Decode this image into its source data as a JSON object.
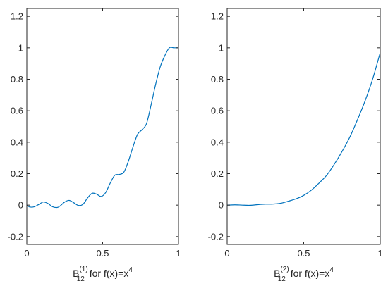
{
  "accent_color": "#0072bd",
  "chart_data": [
    {
      "type": "line",
      "title": "",
      "xlabel": {
        "base": "B",
        "sup": "(1)",
        "sub": "12",
        "rest": " for f(x)=x",
        "power": "4"
      },
      "ylabel": "",
      "xlim": [
        0,
        1
      ],
      "ylim": [
        -0.25,
        1.25
      ],
      "xticks": [
        0,
        0.5,
        1
      ],
      "xtick_labels": [
        "0",
        "0.5",
        "1"
      ],
      "yticks": [
        -0.2,
        0,
        0.2,
        0.4,
        0.6,
        0.8,
        1,
        1.2
      ],
      "ytick_labels": [
        "-0.2",
        "0",
        "0.2",
        "0.4",
        "0.6",
        "0.8",
        "1",
        "1.2"
      ],
      "grid": false,
      "series": [
        {
          "color": "#0072bd",
          "x": [
            0,
            0.02,
            0.05,
            0.08,
            0.11,
            0.14,
            0.17,
            0.2,
            0.22,
            0.25,
            0.28,
            0.31,
            0.34,
            0.37,
            0.4,
            0.43,
            0.46,
            0.49,
            0.52,
            0.55,
            0.58,
            0.61,
            0.64,
            0.67,
            0.7,
            0.73,
            0.76,
            0.79,
            0.82,
            0.85,
            0.88,
            0.91,
            0.94,
            0.97,
            1.0
          ],
          "y": [
            0,
            -0.012,
            -0.01,
            0.005,
            0.02,
            0.01,
            -0.01,
            -0.015,
            -0.005,
            0.02,
            0.03,
            0.015,
            -0.002,
            0.005,
            0.045,
            0.075,
            0.07,
            0.055,
            0.08,
            0.14,
            0.19,
            0.195,
            0.21,
            0.28,
            0.37,
            0.45,
            0.48,
            0.52,
            0.64,
            0.77,
            0.88,
            0.95,
            1.0,
            1.0,
            1.0
          ]
        }
      ]
    },
    {
      "type": "line",
      "title": "",
      "xlabel": {
        "base": "B",
        "sup": "(2)",
        "sub": "12",
        "rest": " for f(x)=x",
        "power": "4"
      },
      "ylabel": "",
      "xlim": [
        0,
        1
      ],
      "ylim": [
        -0.25,
        1.25
      ],
      "xticks": [
        0,
        0.5,
        1
      ],
      "xtick_labels": [
        "0",
        "0.5",
        "1"
      ],
      "yticks": [
        -0.2,
        0,
        0.2,
        0.4,
        0.6,
        0.8,
        1,
        1.2
      ],
      "ytick_labels": [
        "-0.2",
        "0",
        "0.2",
        "0.4",
        "0.6",
        "0.8",
        "1",
        "1.2"
      ],
      "grid": false,
      "series": [
        {
          "color": "#0072bd",
          "x": [
            0,
            0.05,
            0.1,
            0.15,
            0.2,
            0.25,
            0.3,
            0.35,
            0.4,
            0.45,
            0.5,
            0.55,
            0.6,
            0.65,
            0.7,
            0.75,
            0.8,
            0.85,
            0.9,
            0.95,
            1.0
          ],
          "y": [
            0,
            0.002,
            0.0,
            -0.001,
            0.003,
            0.006,
            0.007,
            0.012,
            0.025,
            0.04,
            0.062,
            0.095,
            0.14,
            0.19,
            0.26,
            0.34,
            0.43,
            0.54,
            0.66,
            0.8,
            0.97
          ]
        }
      ]
    }
  ]
}
